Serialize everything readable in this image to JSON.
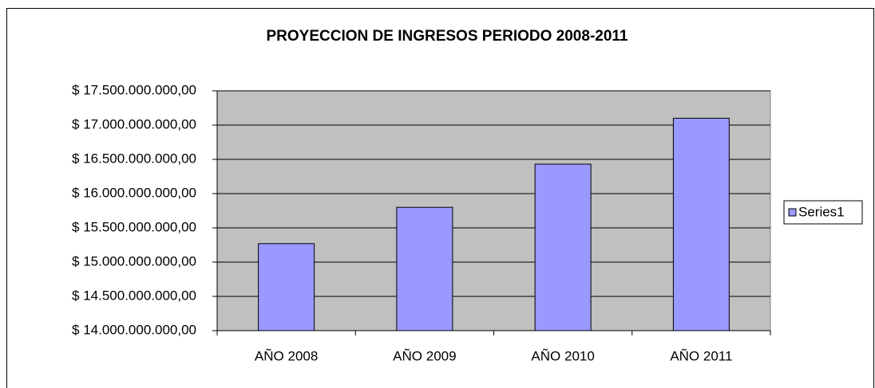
{
  "chart_data": {
    "type": "bar",
    "title": "PROYECCION DE INGRESOS PERIODO 2008-2011",
    "categories": [
      "AÑO 2008",
      "AÑO 2009",
      "AÑO 2010",
      "AÑO 2011"
    ],
    "series": [
      {
        "name": "Series1",
        "color": "#9999ff",
        "values": [
          15270000000,
          15800000000,
          16430000000,
          17100000000
        ]
      }
    ],
    "ylim": [
      14000000000,
      17500000000
    ],
    "yticks": [
      {
        "value": 14000000000,
        "label": "$ 14.000.000.000,00"
      },
      {
        "value": 14500000000,
        "label": "$ 14.500.000.000,00"
      },
      {
        "value": 15000000000,
        "label": "$ 15.000.000.000,00"
      },
      {
        "value": 15500000000,
        "label": "$ 15.500.000.000,00"
      },
      {
        "value": 16000000000,
        "label": "$ 16.000.000.000,00"
      },
      {
        "value": 16500000000,
        "label": "$ 16.500.000.000,00"
      },
      {
        "value": 17000000000,
        "label": "$ 17.000.000.000,00"
      },
      {
        "value": 17500000000,
        "label": "$ 17.500.000.000,00"
      }
    ],
    "grid": true,
    "legend": "right",
    "plot_background": "#c0c0c0"
  }
}
